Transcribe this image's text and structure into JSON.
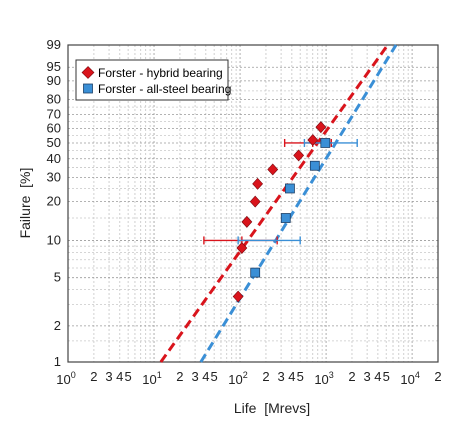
{
  "chart_data": {
    "type": "scatter",
    "title": "",
    "xlabel": "Life  [Mrevs]",
    "ylabel": "Failure  [%]",
    "x_scale": "log",
    "y_scale": "weibull-probability",
    "xlim": [
      1,
      20000
    ],
    "ylim": [
      1,
      99
    ],
    "grid": true,
    "legend_position": "top-left",
    "x_decade_labels": [
      {
        "base": "10",
        "exp": "0"
      },
      {
        "base": "10",
        "exp": "1"
      },
      {
        "base": "10",
        "exp": "2"
      },
      {
        "base": "10",
        "exp": "3"
      },
      {
        "base": "10",
        "exp": "4"
      }
    ],
    "x_minor_labels": [
      "2",
      "3",
      "4",
      "5"
    ],
    "y_ticks": [
      1,
      2,
      5,
      10,
      20,
      30,
      40,
      50,
      60,
      70,
      80,
      90,
      95,
      99
    ],
    "series": [
      {
        "name": "Forster - hybrid bearing",
        "color": "#d9141c",
        "marker": "diamond",
        "points": [
          {
            "x": 95,
            "y": 3.5
          },
          {
            "x": 105,
            "y": 8.7
          },
          {
            "x": 120,
            "y": 14
          },
          {
            "x": 150,
            "y": 20
          },
          {
            "x": 160,
            "y": 27
          },
          {
            "x": 240,
            "y": 34
          },
          {
            "x": 480,
            "y": 42
          },
          {
            "x": 700,
            "y": 52
          },
          {
            "x": 870,
            "y": 61
          }
        ],
        "fit_line": {
          "x": [
            12,
            5200
          ],
          "y": [
            1,
            99
          ]
        },
        "error_bars": [
          {
            "y": 10,
            "x_low": 38,
            "x_high": 270,
            "x_center": 105
          },
          {
            "y": 50,
            "x_low": 330,
            "x_high": 1150,
            "x_center": 700
          }
        ]
      },
      {
        "name": "Forster - all-steel bearing",
        "color": "#3a8fd6",
        "marker": "square",
        "points": [
          {
            "x": 150,
            "y": 5.5
          },
          {
            "x": 340,
            "y": 15
          },
          {
            "x": 380,
            "y": 25
          },
          {
            "x": 740,
            "y": 36
          },
          {
            "x": 980,
            "y": 50
          }
        ],
        "fit_line": {
          "x": [
            35,
            6500
          ],
          "y": [
            1,
            99
          ]
        },
        "error_bars": [
          {
            "y": 10,
            "x_low": 95,
            "x_high": 500
          },
          {
            "y": 50,
            "x_low": 560,
            "x_high": 2300,
            "x_center": 980
          }
        ]
      }
    ]
  }
}
